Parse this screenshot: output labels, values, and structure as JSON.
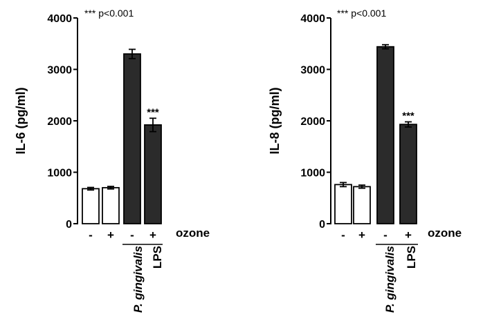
{
  "chart_data": [
    {
      "type": "bar",
      "ylabel": "IL-6 (pg/ml)",
      "ylim": [
        0,
        4000
      ],
      "yticks": [
        "0",
        "1000",
        "2000",
        "3000",
        "4000"
      ],
      "annotation": "*** p<0.001",
      "xtick_labels": [
        "-",
        "+",
        "-",
        "+"
      ],
      "ozone_label": "ozone",
      "group_labels": [
        "P. gingivalis",
        "LPS"
      ],
      "bar_colors": [
        "#ffffff",
        "#ffffff",
        "#2b2b2b",
        "#2b2b2b"
      ],
      "values": [
        680,
        700,
        3300,
        1920
      ],
      "errors": [
        25,
        25,
        90,
        130
      ],
      "significance": [
        "",
        "",
        "",
        "***"
      ]
    },
    {
      "type": "bar",
      "ylabel": "IL-8 (pg/ml)",
      "ylim": [
        0,
        4000
      ],
      "yticks": [
        "0",
        "1000",
        "2000",
        "3000",
        "4000"
      ],
      "annotation": "*** p<0.001",
      "xtick_labels": [
        "-",
        "+",
        "-",
        "+"
      ],
      "ozone_label": "ozone",
      "group_labels": [
        "P. gingivalis",
        "LPS"
      ],
      "bar_colors": [
        "#ffffff",
        "#ffffff",
        "#2b2b2b",
        "#2b2b2b"
      ],
      "values": [
        760,
        720,
        3440,
        1930
      ],
      "errors": [
        40,
        30,
        40,
        50
      ],
      "significance": [
        "",
        "",
        "",
        "***"
      ]
    }
  ]
}
